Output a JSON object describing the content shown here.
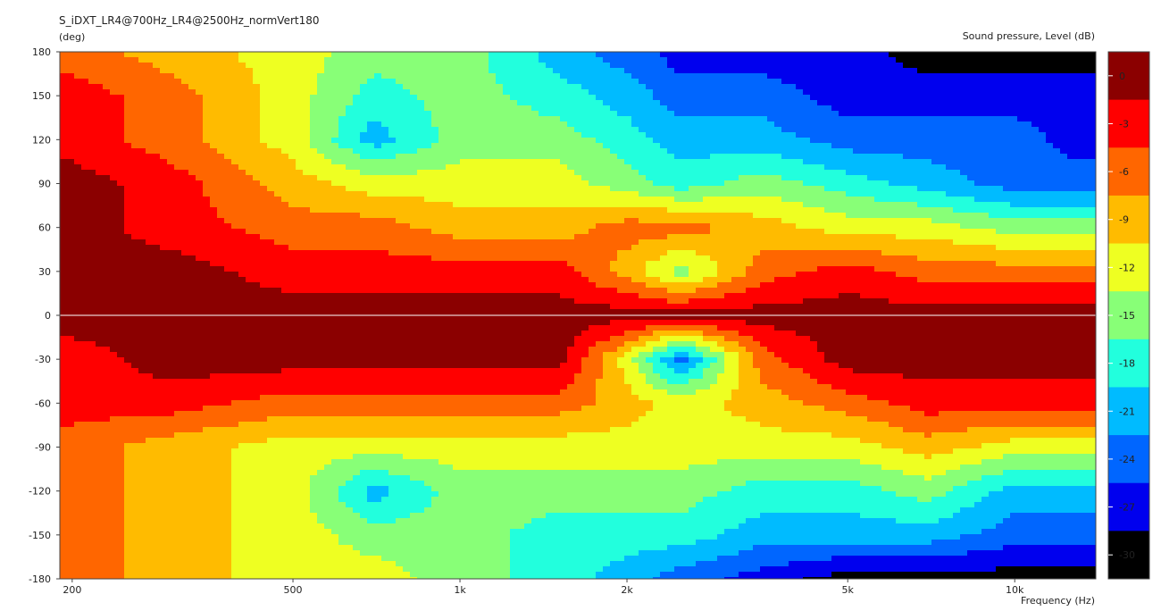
{
  "chart_data": {
    "type": "heatmap",
    "title": "S_iDXT_LR4@700Hz_LR4@2500Hz_normVert180",
    "ylabel": "(deg)",
    "xlabel": "Frequency  (Hz)",
    "colorbar_label": "Sound pressure, Level  (dB)",
    "x_scale": "log",
    "xlim": [
      190,
      14000
    ],
    "ylim": [
      -180,
      180
    ],
    "y_ticks": [
      "180",
      "150",
      "120",
      "90",
      "60",
      "30",
      "0",
      "-30",
      "-60",
      "-90",
      "-120",
      "-150",
      "-180"
    ],
    "x_tick_labels": [
      "200",
      "500",
      "1k",
      "2k",
      "5k",
      "10k"
    ],
    "x_tick_values": [
      200,
      500,
      1000,
      2000,
      5000,
      10000
    ],
    "colorbar_ticks": [
      "0",
      "-3",
      "-6",
      "-9",
      "-12",
      "-15",
      "-18",
      "-21",
      "-24",
      "-27",
      "-30"
    ],
    "colorbar_colors": [
      "#8b0000",
      "#ff0000",
      "#ff6600",
      "#ffbb00",
      "#eeff22",
      "#88ff77",
      "#22ffdd",
      "#00bbff",
      "#0066ff",
      "#0000ee",
      "#000000"
    ],
    "angles": [
      180,
      150,
      120,
      90,
      60,
      30,
      0,
      -30,
      -60,
      -90,
      -120,
      -150,
      -180
    ],
    "freqs": [
      200,
      300,
      500,
      700,
      1000,
      1500,
      2000,
      2500,
      3500,
      5000,
      7000,
      10000,
      13000
    ],
    "levels_db": [
      [
        -6,
        -9,
        -12,
        -15,
        -15,
        -21,
        -24,
        -27,
        -27,
        -27,
        -30,
        -30,
        -30
      ],
      [
        -3,
        -6,
        -12,
        -18,
        -15,
        -18,
        -21,
        -24,
        -24,
        -27,
        -27,
        -27,
        -27
      ],
      [
        -3,
        -6,
        -12,
        -21,
        -15,
        -15,
        -18,
        -21,
        -21,
        -24,
        -24,
        -24,
        -27
      ],
      [
        0,
        -3,
        -9,
        -12,
        -12,
        -12,
        -15,
        -18,
        -15,
        -18,
        -21,
        -24,
        -24
      ],
      [
        0,
        -3,
        -6,
        -6,
        -9,
        -9,
        -6,
        -6,
        -9,
        -12,
        -12,
        -15,
        -15
      ],
      [
        0,
        0,
        -3,
        -3,
        -3,
        -3,
        -9,
        -15,
        -6,
        -3,
        -6,
        -6,
        -6
      ],
      [
        0,
        0,
        0,
        0,
        0,
        0,
        0,
        0,
        0,
        0,
        0,
        0,
        0
      ],
      [
        -3,
        0,
        0,
        0,
        0,
        0,
        -12,
        -24,
        -6,
        0,
        0,
        0,
        0
      ],
      [
        -3,
        -3,
        -6,
        -6,
        -6,
        -6,
        -9,
        -12,
        -9,
        -6,
        -3,
        -3,
        -3
      ],
      [
        -6,
        -9,
        -12,
        -12,
        -12,
        -12,
        -12,
        -12,
        -12,
        -12,
        -9,
        -12,
        -12
      ],
      [
        -6,
        -9,
        -12,
        -21,
        -15,
        -15,
        -15,
        -15,
        -18,
        -18,
        -15,
        -21,
        -21
      ],
      [
        -6,
        -9,
        -12,
        -15,
        -15,
        -18,
        -18,
        -18,
        -21,
        -21,
        -21,
        -24,
        -24
      ],
      [
        -6,
        -9,
        -12,
        -12,
        -15,
        -18,
        -21,
        -24,
        -27,
        -30,
        -30,
        -30,
        -30
      ]
    ]
  }
}
